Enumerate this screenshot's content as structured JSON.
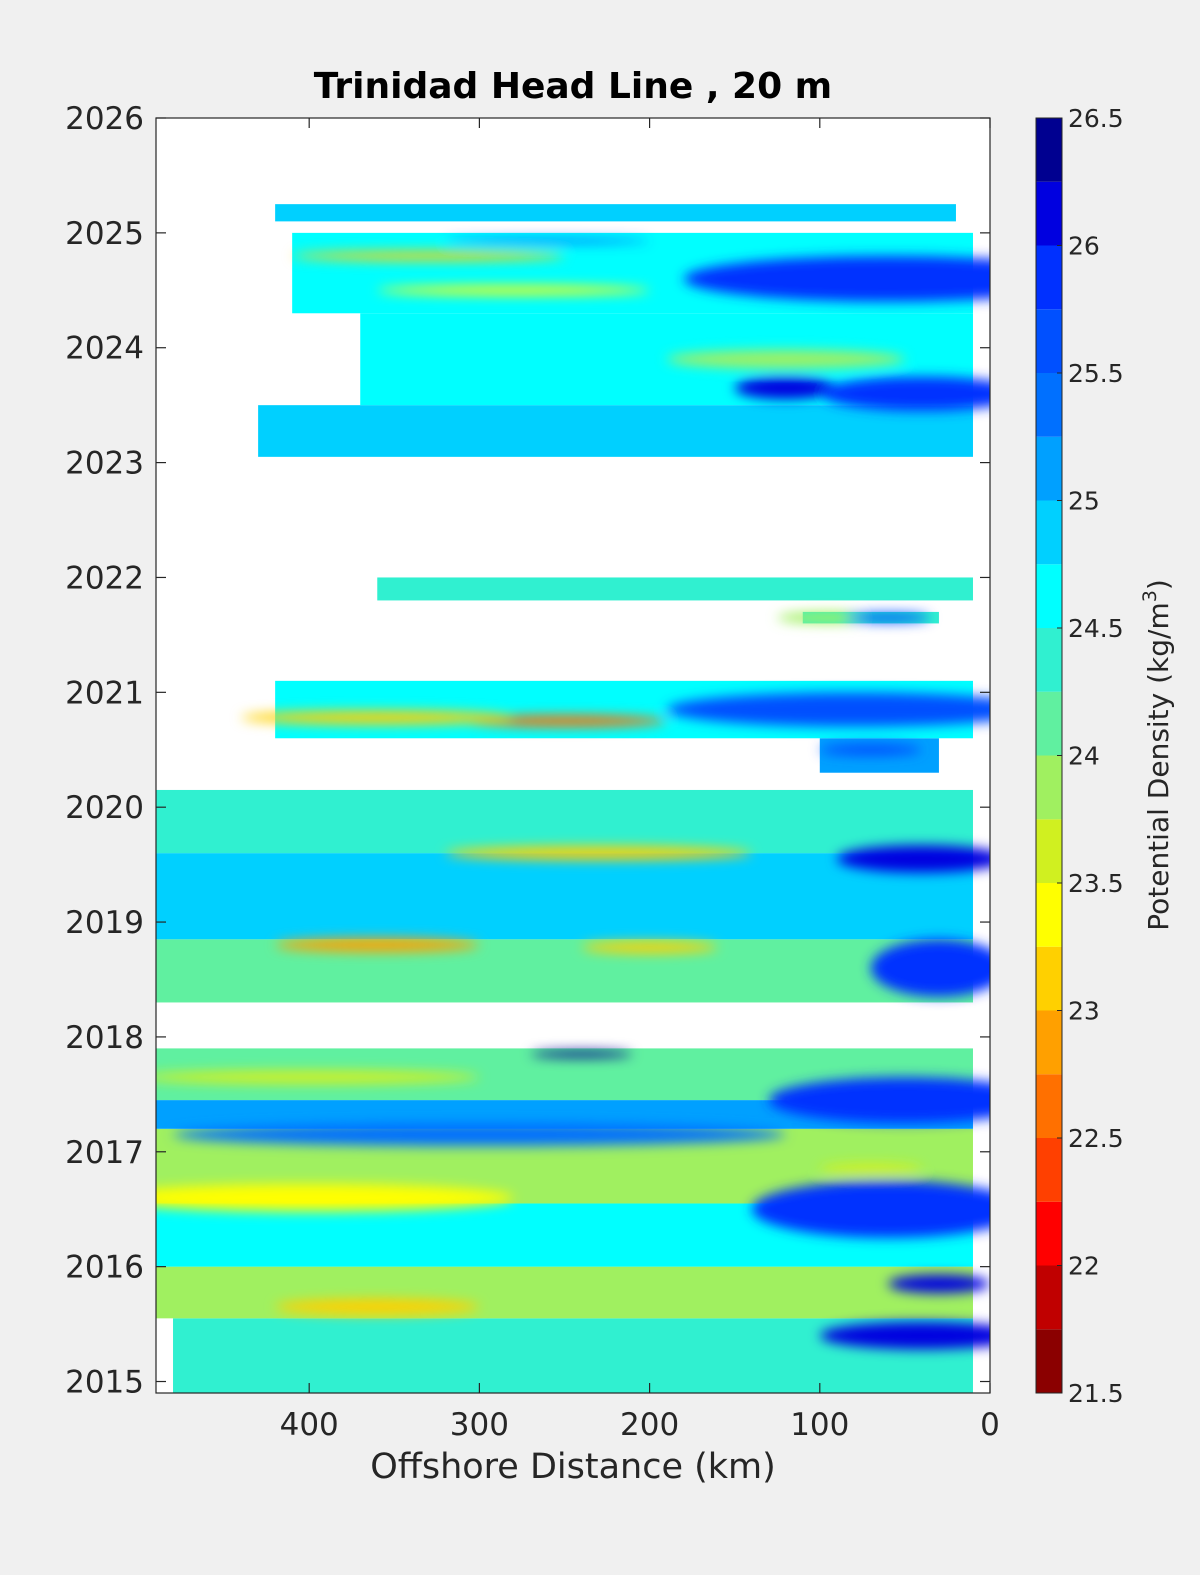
{
  "chart_data": {
    "type": "heatmap",
    "title": "Trinidad Head Line , 20 m",
    "xlabel": "Offshore Distance (km)",
    "ylabel": "",
    "x_reversed": true,
    "xlim": [
      490,
      0
    ],
    "ylim": [
      2014.9,
      2026
    ],
    "x_ticks": [
      400,
      300,
      200,
      100,
      0
    ],
    "y_ticks": [
      2015,
      2016,
      2017,
      2018,
      2019,
      2020,
      2021,
      2022,
      2023,
      2024,
      2025,
      2026
    ],
    "colorbar": {
      "label_prefix": "Potential Density (kg/m",
      "label_sup": "3",
      "label_suffix": ")",
      "range": [
        21.5,
        26.5
      ],
      "ticks": [
        21.5,
        22,
        22.5,
        23,
        23.5,
        24,
        24.5,
        25,
        25.5,
        26,
        26.5
      ],
      "levels": [
        21.5,
        21.75,
        22,
        22.25,
        22.5,
        22.75,
        23,
        23.25,
        23.5,
        23.75,
        24,
        24.25,
        24.5,
        24.75,
        25,
        25.25,
        25.5,
        25.75,
        26,
        26.25,
        26.5
      ],
      "colors": [
        "#8b0000",
        "#c00000",
        "#ff0000",
        "#ff4000",
        "#ff7000",
        "#ffa000",
        "#ffd000",
        "#ffff00",
        "#d0f020",
        "#a0f060",
        "#60f0a0",
        "#30f0d0",
        "#00ffff",
        "#00d0ff",
        "#00a0ff",
        "#0070ff",
        "#0050ff",
        "#0030ff",
        "#0000e0",
        "#000090"
      ]
    },
    "survey_bands": [
      {
        "y0": 2014.9,
        "y1": 2015.55,
        "x_max": 480,
        "x_min": 10,
        "value": 24.3
      },
      {
        "y0": 2015.55,
        "y1": 2016.0,
        "x_max": 490,
        "x_min": 10,
        "value": 23.9
      },
      {
        "y0": 2016.0,
        "y1": 2016.55,
        "x_max": 490,
        "x_min": 10,
        "value": 24.5
      },
      {
        "y0": 2016.55,
        "y1": 2017.2,
        "x_max": 490,
        "x_min": 10,
        "value": 23.8
      },
      {
        "y0": 2017.2,
        "y1": 2017.45,
        "x_max": 490,
        "x_min": 10,
        "value": 25.0
      },
      {
        "y0": 2017.45,
        "y1": 2017.9,
        "x_max": 490,
        "x_min": 10,
        "value": 24.2
      },
      {
        "y0": 2018.3,
        "y1": 2018.85,
        "x_max": 490,
        "x_min": 10,
        "value": 24.2
      },
      {
        "y0": 2018.85,
        "y1": 2019.6,
        "x_max": 490,
        "x_min": 10,
        "value": 24.8
      },
      {
        "y0": 2019.6,
        "y1": 2020.15,
        "x_max": 490,
        "x_min": 10,
        "value": 24.4
      },
      {
        "y0": 2020.3,
        "y1": 2020.6,
        "x_max": 100,
        "x_min": 30,
        "value": 25.0
      },
      {
        "y0": 2020.6,
        "y1": 2021.1,
        "x_max": 420,
        "x_min": 10,
        "value": 24.6
      },
      {
        "y0": 2021.6,
        "y1": 2021.7,
        "x_max": 110,
        "x_min": 30,
        "value": 24.4
      },
      {
        "y0": 2021.8,
        "y1": 2022.0,
        "x_max": 360,
        "x_min": 10,
        "value": 24.4
      },
      {
        "y0": 2023.05,
        "y1": 2023.5,
        "x_max": 430,
        "x_min": 10,
        "value": 24.9
      },
      {
        "y0": 2023.5,
        "y1": 2024.3,
        "x_max": 370,
        "x_min": 10,
        "value": 24.7
      },
      {
        "y0": 2024.3,
        "y1": 2025.0,
        "x_max": 410,
        "x_min": 10,
        "value": 24.6
      },
      {
        "y0": 2025.1,
        "y1": 2025.25,
        "x_max": 420,
        "x_min": 20,
        "value": 24.9
      }
    ],
    "features": [
      {
        "x": 360,
        "y": 2015.65,
        "rx": 60,
        "ry": 0.07,
        "value": 23.1
      },
      {
        "x": 40,
        "y": 2015.4,
        "rx": 60,
        "ry": 0.12,
        "value": 26.0
      },
      {
        "x": 30,
        "y": 2015.85,
        "rx": 30,
        "ry": 0.08,
        "value": 26.1
      },
      {
        "x": 60,
        "y": 2016.5,
        "rx": 80,
        "ry": 0.25,
        "value": 25.9
      },
      {
        "x": 400,
        "y": 2016.6,
        "rx": 120,
        "ry": 0.12,
        "value": 23.4
      },
      {
        "x": 70,
        "y": 2016.85,
        "rx": 30,
        "ry": 0.05,
        "value": 23.6
      },
      {
        "x": 300,
        "y": 2017.15,
        "rx": 180,
        "ry": 0.1,
        "value": 25.3
      },
      {
        "x": 50,
        "y": 2017.45,
        "rx": 80,
        "ry": 0.2,
        "value": 25.8
      },
      {
        "x": 400,
        "y": 2017.65,
        "rx": 100,
        "ry": 0.06,
        "value": 23.5
      },
      {
        "x": 240,
        "y": 2017.85,
        "rx": 30,
        "ry": 0.03,
        "value": 26.3
      },
      {
        "x": 360,
        "y": 2018.8,
        "rx": 60,
        "ry": 0.06,
        "value": 22.8
      },
      {
        "x": 200,
        "y": 2018.78,
        "rx": 40,
        "ry": 0.05,
        "value": 23.1
      },
      {
        "x": 30,
        "y": 2018.6,
        "rx": 40,
        "ry": 0.25,
        "value": 25.9
      },
      {
        "x": 40,
        "y": 2019.55,
        "rx": 50,
        "ry": 0.12,
        "value": 26.0
      },
      {
        "x": 230,
        "y": 2019.6,
        "rx": 90,
        "ry": 0.06,
        "value": 23.2
      },
      {
        "x": 250,
        "y": 2020.75,
        "rx": 60,
        "ry": 0.05,
        "value": 22.6
      },
      {
        "x": 360,
        "y": 2020.78,
        "rx": 80,
        "ry": 0.06,
        "value": 23.1
      },
      {
        "x": 80,
        "y": 2020.85,
        "rx": 110,
        "ry": 0.15,
        "value": 25.6
      },
      {
        "x": 70,
        "y": 2020.5,
        "rx": 30,
        "ry": 0.05,
        "value": 25.5
      },
      {
        "x": 95,
        "y": 2021.65,
        "rx": 30,
        "ry": 0.05,
        "value": 23.8
      },
      {
        "x": 60,
        "y": 2021.65,
        "rx": 25,
        "ry": 0.04,
        "value": 25.7
      },
      {
        "x": 120,
        "y": 2023.65,
        "rx": 30,
        "ry": 0.1,
        "value": 26.1
      },
      {
        "x": 40,
        "y": 2023.6,
        "rx": 60,
        "ry": 0.15,
        "value": 25.8
      },
      {
        "x": 120,
        "y": 2023.9,
        "rx": 70,
        "ry": 0.08,
        "value": 23.9
      },
      {
        "x": 60,
        "y": 2024.6,
        "rx": 120,
        "ry": 0.2,
        "value": 25.8
      },
      {
        "x": 280,
        "y": 2024.5,
        "rx": 80,
        "ry": 0.04,
        "value": 23.4
      },
      {
        "x": 330,
        "y": 2024.8,
        "rx": 80,
        "ry": 0.04,
        "value": 23.0
      },
      {
        "x": 260,
        "y": 2024.93,
        "rx": 60,
        "ry": 0.02,
        "value": 25.7
      }
    ]
  }
}
